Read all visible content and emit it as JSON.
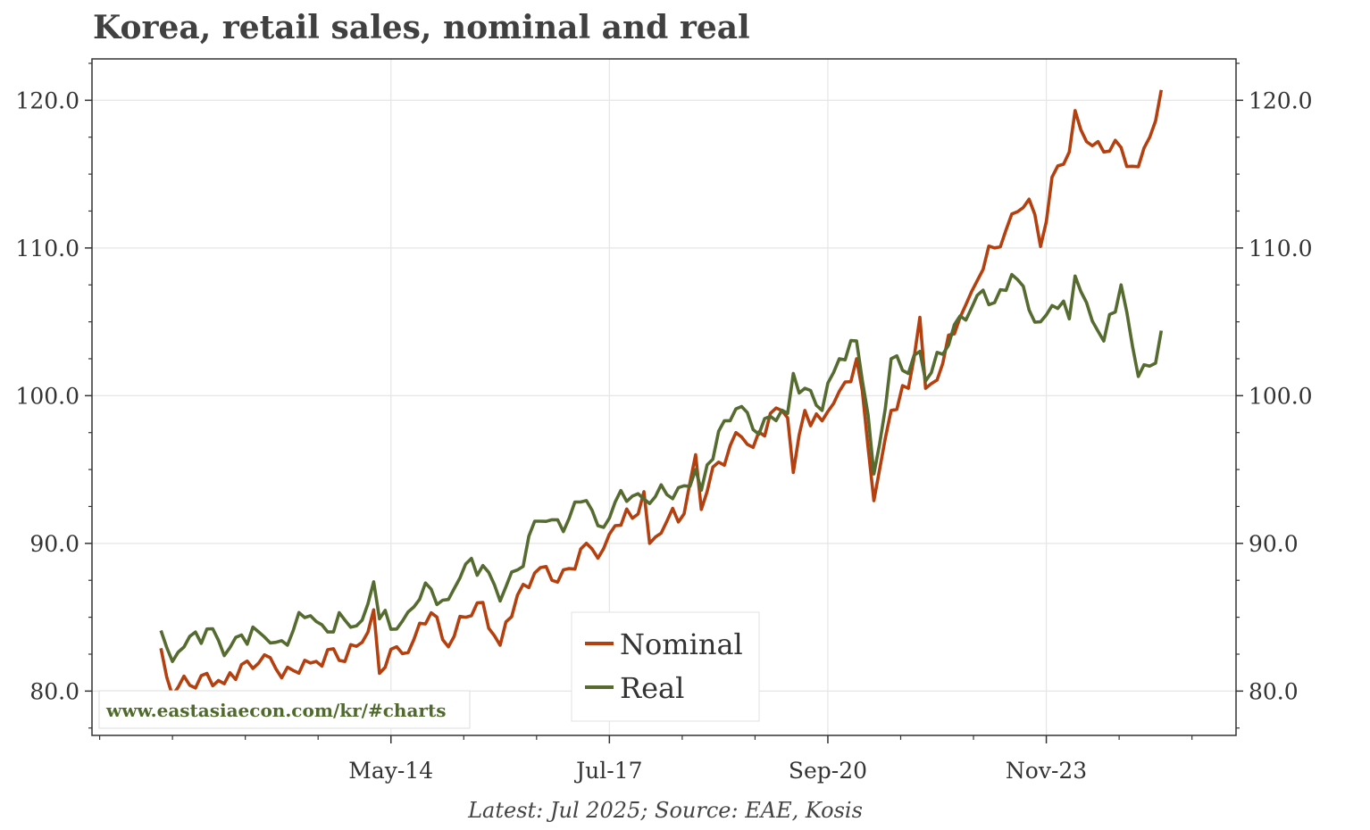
{
  "title": "Korea, retail sales, nominal and real",
  "footnote": "Latest: Jul 2025; Source: EAE, Kosis",
  "watermark": "www.eastasiaecon.com/kr/#charts",
  "colors": {
    "nominal": "#b5400f",
    "real": "#556b2f",
    "grid": "#e6e6e6",
    "axis": "#333333",
    "text": "#404040"
  },
  "chart_data": {
    "type": "line",
    "title": "Korea, retail sales, nominal and real",
    "xlabel": "",
    "ylabel": "",
    "x_start": "2011-01",
    "x_end": "2025-07",
    "x_range": [
      "2010-01",
      "2026-08"
    ],
    "x_tick_labels": [
      "May-14",
      "Jul-17",
      "Sep-20",
      "Nov-23"
    ],
    "x_tick_dates": [
      "2014-05",
      "2017-07",
      "2020-09",
      "2023-11"
    ],
    "ylim": [
      77.0,
      122.8
    ],
    "y_ticks": [
      80.0,
      90.0,
      100.0,
      110.0,
      120.0
    ],
    "y_tick_labels": [
      "80.0",
      "90.0",
      "100.0",
      "110.0",
      "120.0"
    ],
    "grid": true,
    "legend_position": "bottom-center",
    "series": [
      {
        "name": "Nominal",
        "anchors": [
          [
            "2011-01",
            82.9
          ],
          [
            "2011-03",
            79.7
          ],
          [
            "2011-06",
            80.4
          ],
          [
            "2011-09",
            81.2
          ],
          [
            "2011-12",
            80.5
          ],
          [
            "2012-03",
            81.8
          ],
          [
            "2012-06",
            81.9
          ],
          [
            "2012-09",
            81.5
          ],
          [
            "2012-12",
            81.4
          ],
          [
            "2013-03",
            81.9
          ],
          [
            "2013-06",
            82.8
          ],
          [
            "2013-09",
            82.0
          ],
          [
            "2013-12",
            83.3
          ],
          [
            "2014-02",
            85.5
          ],
          [
            "2014-03",
            81.2
          ],
          [
            "2014-06",
            83.0
          ],
          [
            "2014-09",
            83.5
          ],
          [
            "2014-12",
            85.3
          ],
          [
            "2015-03",
            83.0
          ],
          [
            "2015-06",
            85.0
          ],
          [
            "2015-09",
            86.0
          ],
          [
            "2015-12",
            83.1
          ],
          [
            "2016-03",
            86.5
          ],
          [
            "2016-06",
            88.0
          ],
          [
            "2016-09",
            87.5
          ],
          [
            "2016-12",
            88.3
          ],
          [
            "2017-03",
            90.0
          ],
          [
            "2017-05",
            89.0
          ],
          [
            "2017-08",
            91.2
          ],
          [
            "2017-11",
            91.7
          ],
          [
            "2018-01",
            93.5
          ],
          [
            "2018-02",
            90.0
          ],
          [
            "2018-05",
            91.5
          ],
          [
            "2018-08",
            92.0
          ],
          [
            "2018-10",
            96.0
          ],
          [
            "2018-11",
            92.3
          ],
          [
            "2019-02",
            95.5
          ],
          [
            "2019-05",
            97.5
          ],
          [
            "2019-08",
            96.5
          ],
          [
            "2019-11",
            98.8
          ],
          [
            "2020-02",
            98.5
          ],
          [
            "2020-03",
            94.8
          ],
          [
            "2020-05",
            99.0
          ],
          [
            "2020-08",
            98.3
          ],
          [
            "2020-11",
            100.3
          ],
          [
            "2021-02",
            102.5
          ],
          [
            "2021-04",
            96.5
          ],
          [
            "2021-05",
            92.9
          ],
          [
            "2021-08",
            99.0
          ],
          [
            "2021-11",
            100.5
          ],
          [
            "2022-01",
            105.3
          ],
          [
            "2022-02",
            100.5
          ],
          [
            "2022-05",
            102.2
          ],
          [
            "2022-08",
            105.3
          ],
          [
            "2022-11",
            107.8
          ],
          [
            "2023-02",
            110.0
          ],
          [
            "2023-05",
            112.3
          ],
          [
            "2023-08",
            113.3
          ],
          [
            "2023-10",
            110.1
          ],
          [
            "2023-12",
            114.8
          ],
          [
            "2024-03",
            116.5
          ],
          [
            "2024-04",
            119.3
          ],
          [
            "2024-06",
            117.2
          ],
          [
            "2024-09",
            116.5
          ],
          [
            "2024-12",
            116.8
          ],
          [
            "2025-03",
            115.5
          ],
          [
            "2025-05",
            117.5
          ],
          [
            "2025-06",
            118.6
          ],
          [
            "2025-07",
            120.7
          ]
        ]
      },
      {
        "name": "Real",
        "anchors": [
          [
            "2011-01",
            84.1
          ],
          [
            "2011-03",
            82.0
          ],
          [
            "2011-06",
            83.7
          ],
          [
            "2011-09",
            84.2
          ],
          [
            "2011-12",
            82.4
          ],
          [
            "2012-03",
            83.8
          ],
          [
            "2012-06",
            84.0
          ],
          [
            "2012-09",
            83.3
          ],
          [
            "2012-12",
            84.1
          ],
          [
            "2013-03",
            85.1
          ],
          [
            "2013-06",
            84.0
          ],
          [
            "2013-09",
            84.8
          ],
          [
            "2013-12",
            84.8
          ],
          [
            "2014-02",
            87.4
          ],
          [
            "2014-03",
            84.9
          ],
          [
            "2014-06",
            84.2
          ],
          [
            "2014-09",
            85.7
          ],
          [
            "2014-12",
            86.9
          ],
          [
            "2015-03",
            86.2
          ],
          [
            "2015-06",
            88.6
          ],
          [
            "2015-09",
            88.5
          ],
          [
            "2015-12",
            86.1
          ],
          [
            "2016-03",
            88.2
          ],
          [
            "2016-06",
            91.5
          ],
          [
            "2016-09",
            91.6
          ],
          [
            "2016-12",
            91.7
          ],
          [
            "2017-03",
            92.9
          ],
          [
            "2017-05",
            91.2
          ],
          [
            "2017-08",
            92.8
          ],
          [
            "2017-11",
            93.2
          ],
          [
            "2018-01",
            93.0
          ],
          [
            "2018-02",
            92.7
          ],
          [
            "2018-05",
            93.3
          ],
          [
            "2018-08",
            93.9
          ],
          [
            "2018-10",
            95.0
          ],
          [
            "2018-11",
            93.6
          ],
          [
            "2019-02",
            97.6
          ],
          [
            "2019-05",
            99.1
          ],
          [
            "2019-08",
            97.7
          ],
          [
            "2019-11",
            98.6
          ],
          [
            "2020-02",
            98.8
          ],
          [
            "2020-03",
            101.5
          ],
          [
            "2020-05",
            100.5
          ],
          [
            "2020-08",
            99.0
          ],
          [
            "2020-11",
            102.5
          ],
          [
            "2021-02",
            103.7
          ],
          [
            "2021-04",
            98.7
          ],
          [
            "2021-05",
            94.7
          ],
          [
            "2021-08",
            102.5
          ],
          [
            "2021-11",
            101.5
          ],
          [
            "2022-01",
            103.0
          ],
          [
            "2022-02",
            101.0
          ],
          [
            "2022-05",
            102.8
          ],
          [
            "2022-08",
            105.4
          ],
          [
            "2022-11",
            106.8
          ],
          [
            "2023-02",
            106.3
          ],
          [
            "2023-05",
            108.2
          ],
          [
            "2023-08",
            105.8
          ],
          [
            "2023-10",
            105.0
          ],
          [
            "2023-12",
            106.1
          ],
          [
            "2024-03",
            105.2
          ],
          [
            "2024-04",
            108.1
          ],
          [
            "2024-06",
            106.3
          ],
          [
            "2024-09",
            103.7
          ],
          [
            "2024-12",
            107.5
          ],
          [
            "2025-03",
            101.3
          ],
          [
            "2025-05",
            102.0
          ],
          [
            "2025-06",
            102.2
          ],
          [
            "2025-07",
            104.4
          ]
        ]
      }
    ]
  }
}
